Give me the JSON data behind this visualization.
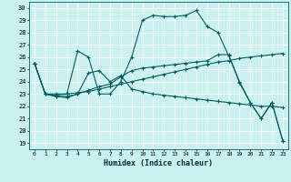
{
  "xlabel": "Humidex (Indice chaleur)",
  "bg_color": "#caf0f0",
  "line_color": "#006060",
  "grid_color": "#ffffff",
  "xlim": [
    -0.5,
    23.5
  ],
  "ylim": [
    18.5,
    30.5
  ],
  "xticks": [
    0,
    1,
    2,
    3,
    4,
    5,
    6,
    7,
    8,
    9,
    10,
    11,
    12,
    13,
    14,
    15,
    16,
    17,
    18,
    19,
    20,
    21,
    22,
    23
  ],
  "yticks": [
    19,
    20,
    21,
    22,
    23,
    24,
    25,
    26,
    27,
    28,
    29,
    30
  ],
  "lines": [
    {
      "x": [
        0,
        1,
        2,
        3,
        4,
        5,
        6,
        7,
        8,
        9,
        10,
        11,
        12,
        13,
        14,
        15,
        16,
        17,
        18,
        19,
        20,
        21,
        22,
        23
      ],
      "y": [
        25.5,
        23,
        23,
        23,
        26.5,
        26,
        23,
        23,
        24,
        26,
        29,
        29.4,
        29.3,
        29.3,
        29.4,
        29.8,
        28.5,
        28,
        26.1,
        24,
        22.3,
        21,
        22.3,
        19.2
      ]
    },
    {
      "x": [
        0,
        1,
        2,
        3,
        4,
        5,
        6,
        7,
        8,
        9,
        10,
        11,
        12,
        13,
        14,
        15,
        16,
        17,
        18,
        19,
        20,
        21,
        22,
        23
      ],
      "y": [
        25.5,
        23,
        22.9,
        23.0,
        23.1,
        23.2,
        23.4,
        23.6,
        23.8,
        24.0,
        24.2,
        24.4,
        24.6,
        24.8,
        25.0,
        25.2,
        25.4,
        25.6,
        25.7,
        25.9,
        26.0,
        26.1,
        26.2,
        26.3
      ]
    },
    {
      "x": [
        0,
        1,
        2,
        3,
        4,
        5,
        6,
        7,
        8,
        9,
        10,
        11,
        12,
        13,
        14,
        15,
        16,
        17,
        18,
        19,
        20,
        21,
        22,
        23
      ],
      "y": [
        25.5,
        23,
        22.8,
        22.7,
        23.0,
        24.7,
        24.9,
        24.0,
        24.5,
        23.4,
        23.2,
        23.0,
        22.9,
        22.8,
        22.7,
        22.6,
        22.5,
        22.4,
        22.3,
        22.2,
        22.1,
        22.0,
        22.0,
        21.9
      ]
    },
    {
      "x": [
        0,
        1,
        2,
        3,
        4,
        5,
        6,
        7,
        8,
        9,
        10,
        11,
        12,
        13,
        14,
        15,
        16,
        17,
        18,
        19,
        20,
        21,
        22,
        23
      ],
      "y": [
        25.5,
        23,
        22.8,
        22.8,
        23.0,
        23.3,
        23.6,
        23.8,
        24.4,
        24.9,
        25.1,
        25.2,
        25.3,
        25.4,
        25.5,
        25.6,
        25.7,
        26.2,
        26.2,
        23.9,
        22.3,
        21.0,
        22.3,
        19.2
      ]
    }
  ]
}
